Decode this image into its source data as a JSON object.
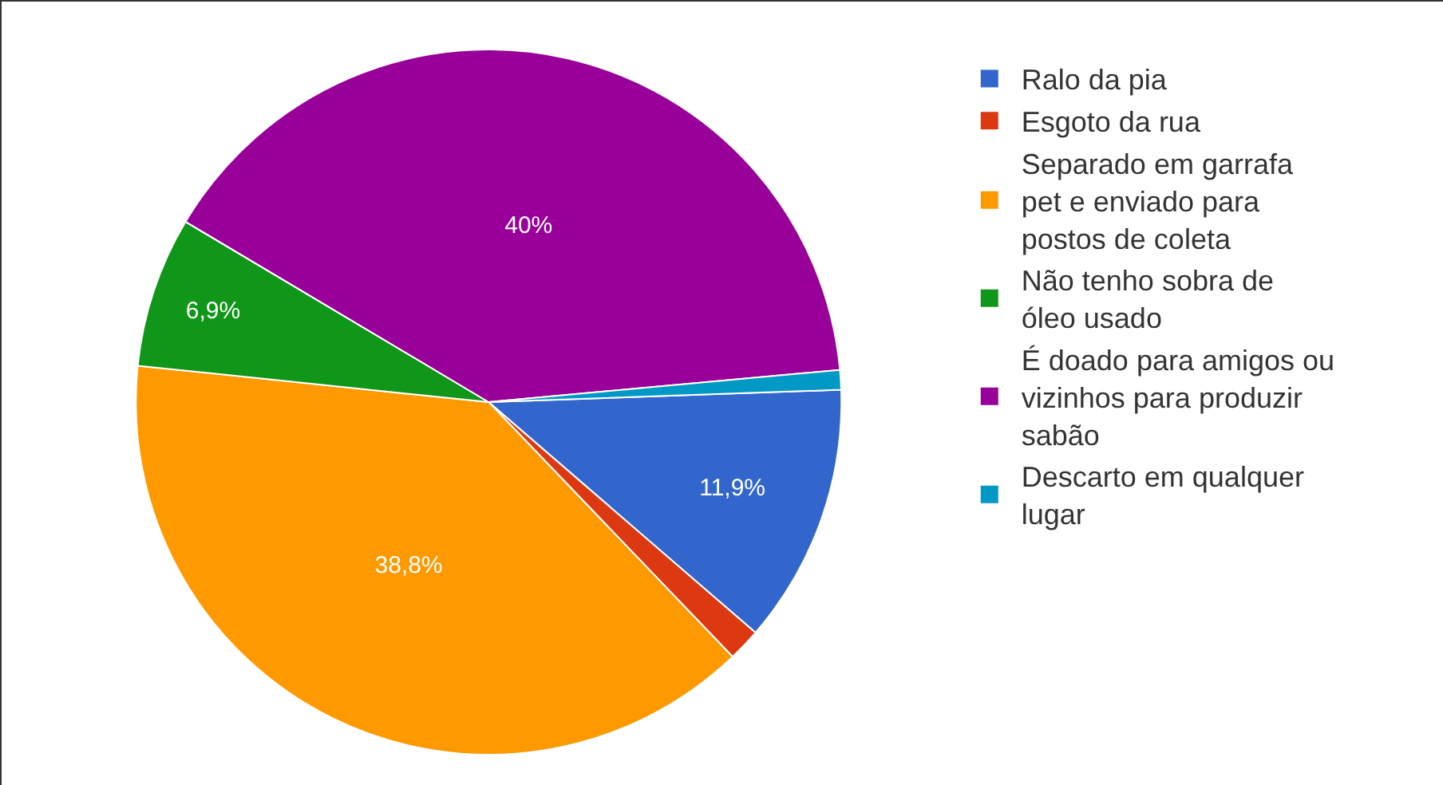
{
  "chart_data": {
    "type": "pie",
    "categories": [
      "Ralo da pia",
      "Esgoto da rua",
      "Separado em garrafa pet e enviado para postos de coleta",
      "Não tenho sobra de óleo usado",
      "É doado para amigos ou vizinhos para produzir sabão",
      "Descarto em qualquer lugar"
    ],
    "values": [
      11.9,
      1.5,
      38.8,
      6.9,
      40,
      0.9
    ],
    "colors": [
      "#3366cc",
      "#dc3912",
      "#ff9900",
      "#109618",
      "#990099",
      "#0099c6"
    ],
    "value_labels": [
      "11,9%",
      null,
      "38,8%",
      "6,9%",
      "40%",
      null
    ],
    "legend": "top right"
  }
}
